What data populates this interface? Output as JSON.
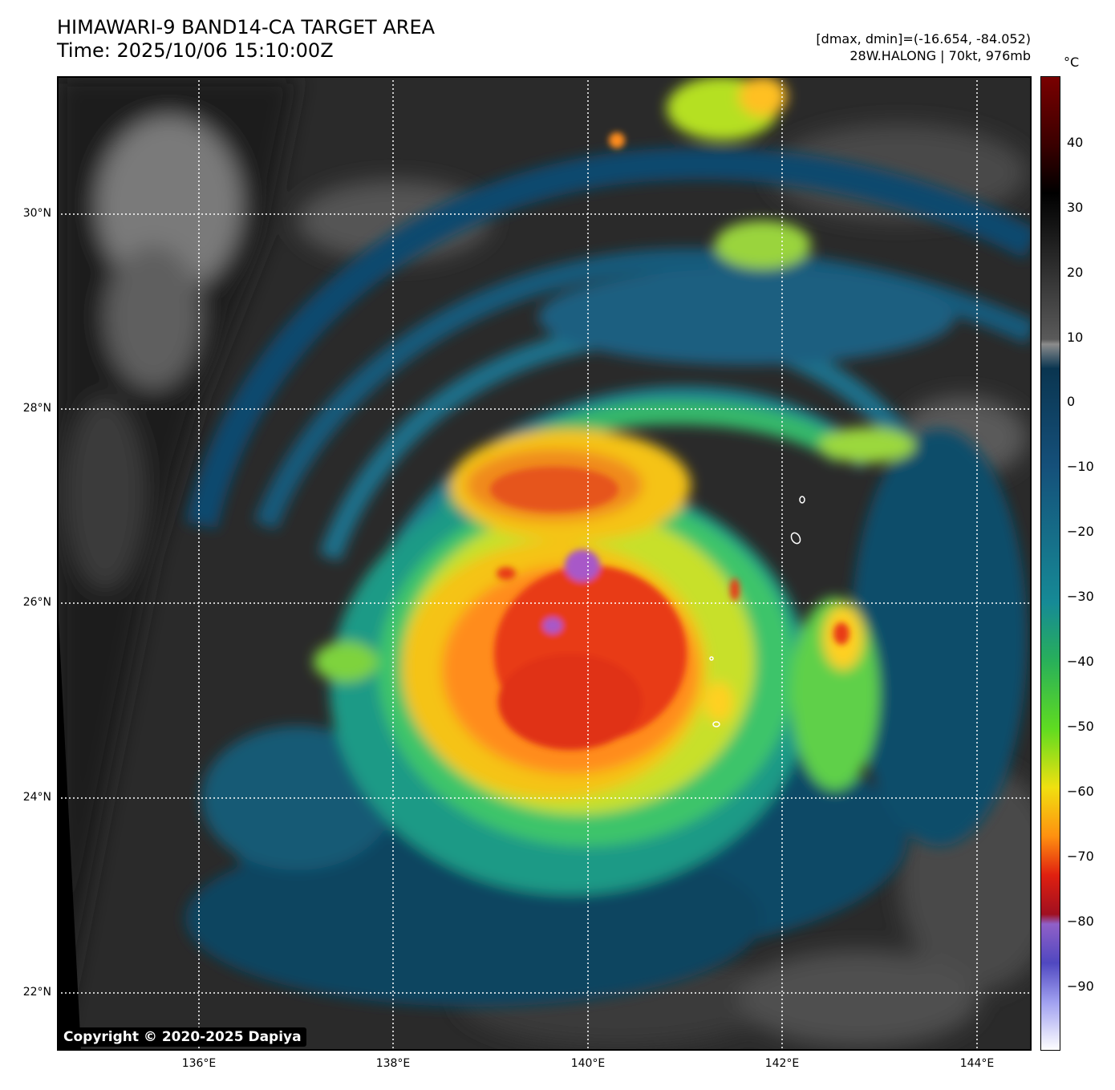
{
  "header": {
    "title_line1": "HIMAWARI-9 BAND14-CA TARGET AREA",
    "title_line2": "Time: 2025/10/06 15:10:00Z",
    "range_text": "[dmax, dmin]=(-16.654, -84.052)",
    "storm_text": "28W.HALONG | 70kt, 976mb"
  },
  "map": {
    "lat_labels": [
      "30°N",
      "28°N",
      "26°N",
      "24°N",
      "22°N"
    ],
    "lon_labels": [
      "136°E",
      "138°E",
      "140°E",
      "142°E",
      "144°E"
    ],
    "copyright": "Copyright © 2020-2025 Dapiya"
  },
  "colorbar": {
    "unit": "°C",
    "ticks": [
      "40",
      "30",
      "20",
      "10",
      "0",
      "−10",
      "−20",
      "−30",
      "−40",
      "−50",
      "−60",
      "−70",
      "−80",
      "−90"
    ]
  }
}
